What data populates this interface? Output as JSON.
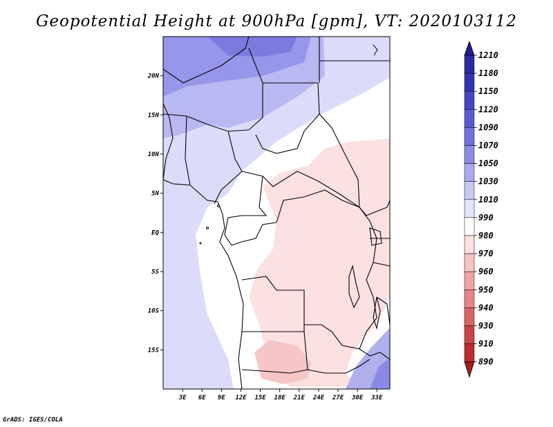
{
  "title": "Geopotential Height at 900hPa [gpm], VT: 2020103112",
  "footer": "GrADS: IGES/COLA",
  "map": {
    "lon_range": [
      0,
      35
    ],
    "lat_range": [
      -20,
      25
    ],
    "lat_ticks": [
      {
        "lat": 20,
        "label": "20N"
      },
      {
        "lat": 15,
        "label": "15N"
      },
      {
        "lat": 10,
        "label": "10N"
      },
      {
        "lat": 5,
        "label": "5N"
      },
      {
        "lat": 0,
        "label": "EQ"
      },
      {
        "lat": -5,
        "label": "5S"
      },
      {
        "lat": -10,
        "label": "10S"
      },
      {
        "lat": -15,
        "label": "15S"
      }
    ],
    "lon_ticks": [
      {
        "lon": 3,
        "label": "3E"
      },
      {
        "lon": 6,
        "label": "6E"
      },
      {
        "lon": 9,
        "label": "9E"
      },
      {
        "lon": 12,
        "label": "12E"
      },
      {
        "lon": 15,
        "label": "15E"
      },
      {
        "lon": 18,
        "label": "18E"
      },
      {
        "lon": 21,
        "label": "21E"
      },
      {
        "lon": 24,
        "label": "24E"
      },
      {
        "lon": 27,
        "label": "27E"
      },
      {
        "lon": 30,
        "label": "30E"
      },
      {
        "lon": 33,
        "label": "33E"
      }
    ]
  },
  "colorbar": {
    "levels": [
      {
        "label": "1210",
        "color": "#1e1e8c"
      },
      {
        "label": "1180",
        "color": "#2828a0"
      },
      {
        "label": "1150",
        "color": "#3232b4"
      },
      {
        "label": "1120",
        "color": "#4646c4"
      },
      {
        "label": "1090",
        "color": "#5a5ad0"
      },
      {
        "label": "1070",
        "color": "#7070dc"
      },
      {
        "label": "1050",
        "color": "#8c8ce6"
      },
      {
        "label": "1030",
        "color": "#aaaaf0"
      },
      {
        "label": "1010",
        "color": "#c8c8f6"
      },
      {
        "label": "990",
        "color": "#e4e4fa"
      },
      {
        "label": "980",
        "color": "#ffffff"
      },
      {
        "label": "970",
        "color": "#fce0e0"
      },
      {
        "label": "960",
        "color": "#f6c2c2"
      },
      {
        "label": "950",
        "color": "#eea4a4"
      },
      {
        "label": "940",
        "color": "#e48484"
      },
      {
        "label": "930",
        "color": "#d86464"
      },
      {
        "label": "910",
        "color": "#cc4444"
      },
      {
        "label": "890",
        "color": "#bc2c2c"
      }
    ],
    "bottom_color": "#a01e1e"
  }
}
